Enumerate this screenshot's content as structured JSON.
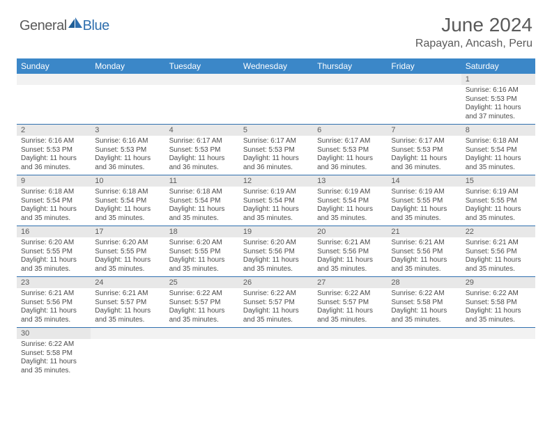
{
  "logo": {
    "part1": "General",
    "part2": "Blue"
  },
  "title": "June 2024",
  "location": "Rapayan, Ancash, Peru",
  "colors": {
    "header_bg": "#3b87c8",
    "header_text": "#ffffff",
    "daynum_bg": "#e8e8e8",
    "border": "#2f6fae",
    "text": "#4a4a4a",
    "title_text": "#5a5a5a",
    "logo_gray": "#5a5a5a",
    "logo_blue": "#2f6fae"
  },
  "weekdays": [
    "Sunday",
    "Monday",
    "Tuesday",
    "Wednesday",
    "Thursday",
    "Friday",
    "Saturday"
  ],
  "weeks": [
    [
      null,
      null,
      null,
      null,
      null,
      null,
      {
        "n": "1",
        "sr": "6:16 AM",
        "ss": "5:53 PM",
        "dl": "11 hours and 37 minutes."
      }
    ],
    [
      {
        "n": "2",
        "sr": "6:16 AM",
        "ss": "5:53 PM",
        "dl": "11 hours and 36 minutes."
      },
      {
        "n": "3",
        "sr": "6:16 AM",
        "ss": "5:53 PM",
        "dl": "11 hours and 36 minutes."
      },
      {
        "n": "4",
        "sr": "6:17 AM",
        "ss": "5:53 PM",
        "dl": "11 hours and 36 minutes."
      },
      {
        "n": "5",
        "sr": "6:17 AM",
        "ss": "5:53 PM",
        "dl": "11 hours and 36 minutes."
      },
      {
        "n": "6",
        "sr": "6:17 AM",
        "ss": "5:53 PM",
        "dl": "11 hours and 36 minutes."
      },
      {
        "n": "7",
        "sr": "6:17 AM",
        "ss": "5:53 PM",
        "dl": "11 hours and 36 minutes."
      },
      {
        "n": "8",
        "sr": "6:18 AM",
        "ss": "5:54 PM",
        "dl": "11 hours and 35 minutes."
      }
    ],
    [
      {
        "n": "9",
        "sr": "6:18 AM",
        "ss": "5:54 PM",
        "dl": "11 hours and 35 minutes."
      },
      {
        "n": "10",
        "sr": "6:18 AM",
        "ss": "5:54 PM",
        "dl": "11 hours and 35 minutes."
      },
      {
        "n": "11",
        "sr": "6:18 AM",
        "ss": "5:54 PM",
        "dl": "11 hours and 35 minutes."
      },
      {
        "n": "12",
        "sr": "6:19 AM",
        "ss": "5:54 PM",
        "dl": "11 hours and 35 minutes."
      },
      {
        "n": "13",
        "sr": "6:19 AM",
        "ss": "5:54 PM",
        "dl": "11 hours and 35 minutes."
      },
      {
        "n": "14",
        "sr": "6:19 AM",
        "ss": "5:55 PM",
        "dl": "11 hours and 35 minutes."
      },
      {
        "n": "15",
        "sr": "6:19 AM",
        "ss": "5:55 PM",
        "dl": "11 hours and 35 minutes."
      }
    ],
    [
      {
        "n": "16",
        "sr": "6:20 AM",
        "ss": "5:55 PM",
        "dl": "11 hours and 35 minutes."
      },
      {
        "n": "17",
        "sr": "6:20 AM",
        "ss": "5:55 PM",
        "dl": "11 hours and 35 minutes."
      },
      {
        "n": "18",
        "sr": "6:20 AM",
        "ss": "5:55 PM",
        "dl": "11 hours and 35 minutes."
      },
      {
        "n": "19",
        "sr": "6:20 AM",
        "ss": "5:56 PM",
        "dl": "11 hours and 35 minutes."
      },
      {
        "n": "20",
        "sr": "6:21 AM",
        "ss": "5:56 PM",
        "dl": "11 hours and 35 minutes."
      },
      {
        "n": "21",
        "sr": "6:21 AM",
        "ss": "5:56 PM",
        "dl": "11 hours and 35 minutes."
      },
      {
        "n": "22",
        "sr": "6:21 AM",
        "ss": "5:56 PM",
        "dl": "11 hours and 35 minutes."
      }
    ],
    [
      {
        "n": "23",
        "sr": "6:21 AM",
        "ss": "5:56 PM",
        "dl": "11 hours and 35 minutes."
      },
      {
        "n": "24",
        "sr": "6:21 AM",
        "ss": "5:57 PM",
        "dl": "11 hours and 35 minutes."
      },
      {
        "n": "25",
        "sr": "6:22 AM",
        "ss": "5:57 PM",
        "dl": "11 hours and 35 minutes."
      },
      {
        "n": "26",
        "sr": "6:22 AM",
        "ss": "5:57 PM",
        "dl": "11 hours and 35 minutes."
      },
      {
        "n": "27",
        "sr": "6:22 AM",
        "ss": "5:57 PM",
        "dl": "11 hours and 35 minutes."
      },
      {
        "n": "28",
        "sr": "6:22 AM",
        "ss": "5:58 PM",
        "dl": "11 hours and 35 minutes."
      },
      {
        "n": "29",
        "sr": "6:22 AM",
        "ss": "5:58 PM",
        "dl": "11 hours and 35 minutes."
      }
    ],
    [
      {
        "n": "30",
        "sr": "6:22 AM",
        "ss": "5:58 PM",
        "dl": "11 hours and 35 minutes."
      },
      null,
      null,
      null,
      null,
      null,
      null
    ]
  ],
  "labels": {
    "sunrise": "Sunrise:",
    "sunset": "Sunset:",
    "daylight": "Daylight:"
  }
}
